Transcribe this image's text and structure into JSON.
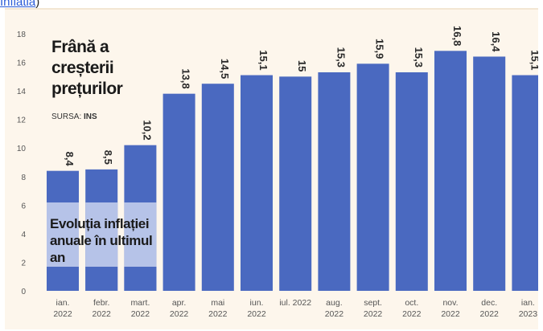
{
  "top_link": {
    "text": "Inflatia",
    "paren": ")"
  },
  "chart_data": {
    "type": "bar",
    "title": "Frână a creșterii prețurilor",
    "source_label": "SURSA:",
    "source_name": "INS",
    "subtitle": "Evoluția inflației anuale în ultimul an",
    "categories": [
      [
        "ian.",
        "2022"
      ],
      [
        "febr.",
        "2022"
      ],
      [
        "mart.",
        "2022"
      ],
      [
        "apr.",
        "2022"
      ],
      [
        "mai",
        "2022"
      ],
      [
        "iun.",
        "2022"
      ],
      [
        "iul. 2022"
      ],
      [
        "aug.",
        "2022"
      ],
      [
        "sept.",
        "2022"
      ],
      [
        "oct.",
        "2022"
      ],
      [
        "nov.",
        "2022"
      ],
      [
        "dec.",
        "2022"
      ],
      [
        "ian.",
        "2023"
      ]
    ],
    "values": [
      8.4,
      8.5,
      10.2,
      13.8,
      14.5,
      15.1,
      15,
      15.3,
      15.9,
      15.3,
      16.8,
      16.4,
      15.1
    ],
    "value_labels": [
      "8,4",
      "8,5",
      "10,2",
      "13,8",
      "14,5",
      "15,1",
      "15",
      "15,3",
      "15,9",
      "15,3",
      "16,8",
      "16,4",
      "15,1"
    ],
    "yticks": [
      0,
      2,
      4,
      6,
      8,
      10,
      12,
      14,
      16,
      18
    ],
    "ylim": [
      0,
      18
    ],
    "grid": false,
    "bar_color": "#4a69c0",
    "bar_light_color": "#c9d3ee",
    "background_color": "#fdf6ec"
  }
}
